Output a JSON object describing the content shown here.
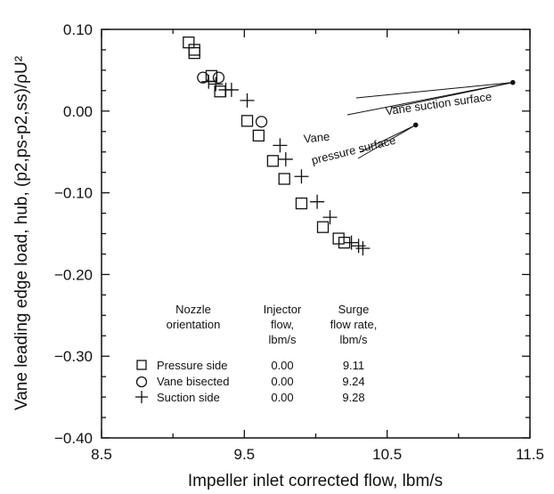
{
  "chart_data": {
    "type": "scatter",
    "xlabel": "Impeller inlet corrected flow, lbm/s",
    "ylabel": "Vane leading edge load, hub, (p2,ps-p2,ss)/ρU²",
    "xlim": [
      8.5,
      11.5
    ],
    "ylim": [
      -0.4,
      0.1
    ],
    "x_ticks": [
      "8.5",
      "9.5",
      "10.5",
      "11.5"
    ],
    "y_ticks": [
      "0.10",
      "0.00",
      "−0.10",
      "−0.20",
      "−0.30",
      "−0.40"
    ],
    "series": [
      {
        "name": "Pressure side",
        "marker": "square",
        "points": [
          [
            9.11,
            0.084
          ],
          [
            9.15,
            0.075
          ],
          [
            9.15,
            0.071
          ],
          [
            9.27,
            0.043
          ],
          [
            9.33,
            0.024
          ],
          [
            9.52,
            -0.012
          ],
          [
            9.6,
            -0.03
          ],
          [
            9.7,
            -0.061
          ],
          [
            9.78,
            -0.083
          ],
          [
            9.9,
            -0.113
          ],
          [
            10.05,
            -0.142
          ],
          [
            10.16,
            -0.156
          ],
          [
            10.2,
            -0.161
          ]
        ]
      },
      {
        "name": "Vane bisected",
        "marker": "circle",
        "points": [
          [
            9.21,
            0.041
          ],
          [
            9.32,
            0.041
          ],
          [
            9.62,
            -0.013
          ]
        ]
      },
      {
        "name": "Suction side",
        "marker": "plus",
        "points": [
          [
            9.25,
            0.036
          ],
          [
            9.3,
            0.033
          ],
          [
            9.37,
            0.026
          ],
          [
            9.41,
            0.026
          ],
          [
            9.52,
            0.013
          ],
          [
            9.75,
            -0.042
          ],
          [
            9.79,
            -0.059
          ],
          [
            9.9,
            -0.08
          ],
          [
            10.01,
            -0.111
          ],
          [
            10.1,
            -0.13
          ],
          [
            10.25,
            -0.161
          ],
          [
            10.3,
            -0.165
          ],
          [
            10.33,
            -0.168
          ]
        ]
      }
    ],
    "annotations": {
      "suction_label": "Vane suction surface",
      "pressure_label_1": "Vane",
      "pressure_label_2": "pressure surface",
      "suction_dot": [
        11.38,
        0.035
      ],
      "pressure_dot": [
        10.7,
        -0.017
      ]
    },
    "legend": {
      "headers": {
        "nozzle_1": "Nozzle",
        "nozzle_2": "orientation",
        "injector_1": "Injector",
        "injector_2": "flow,",
        "injector_3": "lbm/s",
        "surge_1": "Surge",
        "surge_2": "flow rate,",
        "surge_3": "lbm/s"
      },
      "rows": [
        {
          "label": "Pressure side",
          "injector": "0.00",
          "surge": "9.11"
        },
        {
          "label": "Vane bisected",
          "injector": "0.00",
          "surge": "9.24"
        },
        {
          "label": "Suction side",
          "injector": "0.00",
          "surge": "9.28"
        }
      ],
      "placement": "bottom-left"
    }
  }
}
